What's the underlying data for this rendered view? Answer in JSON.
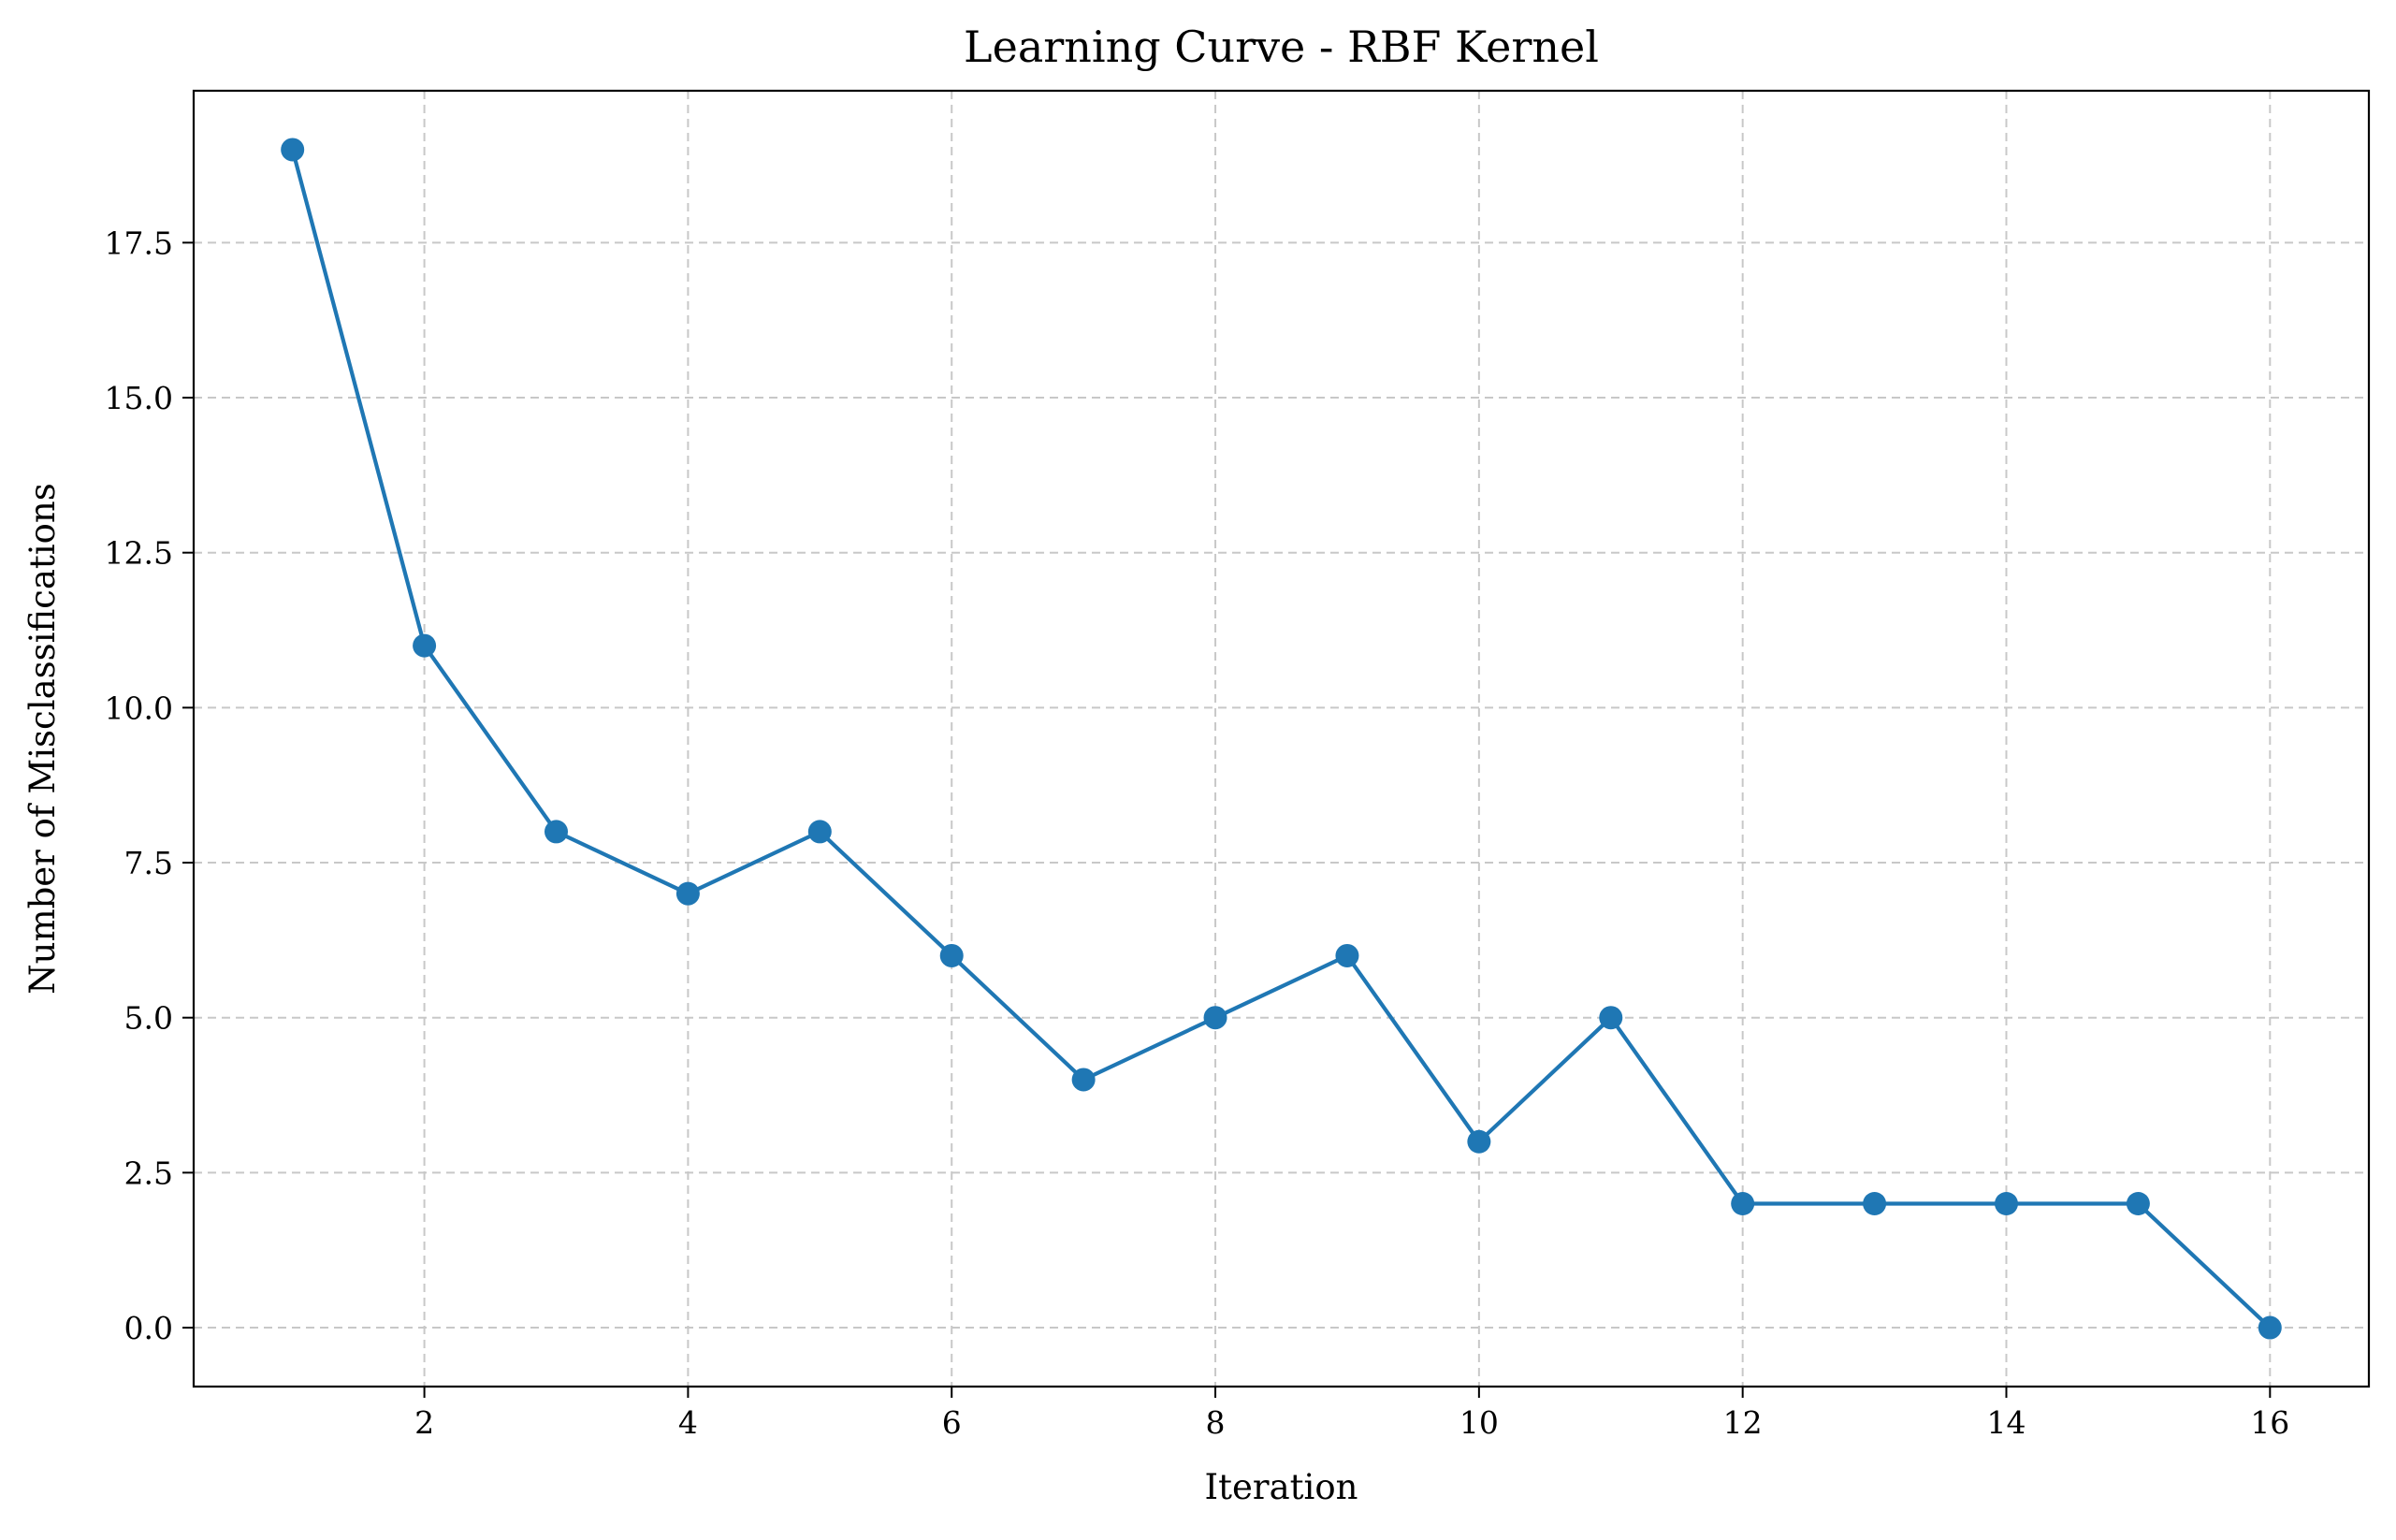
{
  "chart_data": {
    "type": "line",
    "title": "Learning Curve - RBF Kernel",
    "xlabel": "Iteration",
    "ylabel": "Number of Misclassifications",
    "x": [
      1,
      2,
      3,
      4,
      5,
      6,
      7,
      8,
      9,
      10,
      11,
      12,
      13,
      14,
      15,
      16
    ],
    "series": [
      {
        "values": [
          19,
          11,
          8,
          7,
          8,
          6,
          4,
          5,
          6,
          3,
          5,
          2,
          2,
          2,
          2,
          0
        ],
        "color": "#1f77b4",
        "marker": "circle"
      }
    ],
    "xlim": [
      0.25,
      16.75
    ],
    "ylim": [
      -0.95,
      19.95
    ],
    "xticks": [
      2,
      4,
      6,
      8,
      10,
      12,
      14,
      16
    ],
    "xtick_labels": [
      "2",
      "4",
      "6",
      "8",
      "10",
      "12",
      "14",
      "16"
    ],
    "yticks": [
      0,
      2.5,
      5,
      7.5,
      10,
      12.5,
      15,
      17.5
    ],
    "ytick_labels": [
      "0.0",
      "2.5",
      "5.0",
      "7.5",
      "10.0",
      "12.5",
      "15.0",
      "17.5"
    ],
    "grid": true,
    "grid_style": "dashed",
    "grid_color": "#c8c8c8",
    "legend": "none"
  }
}
